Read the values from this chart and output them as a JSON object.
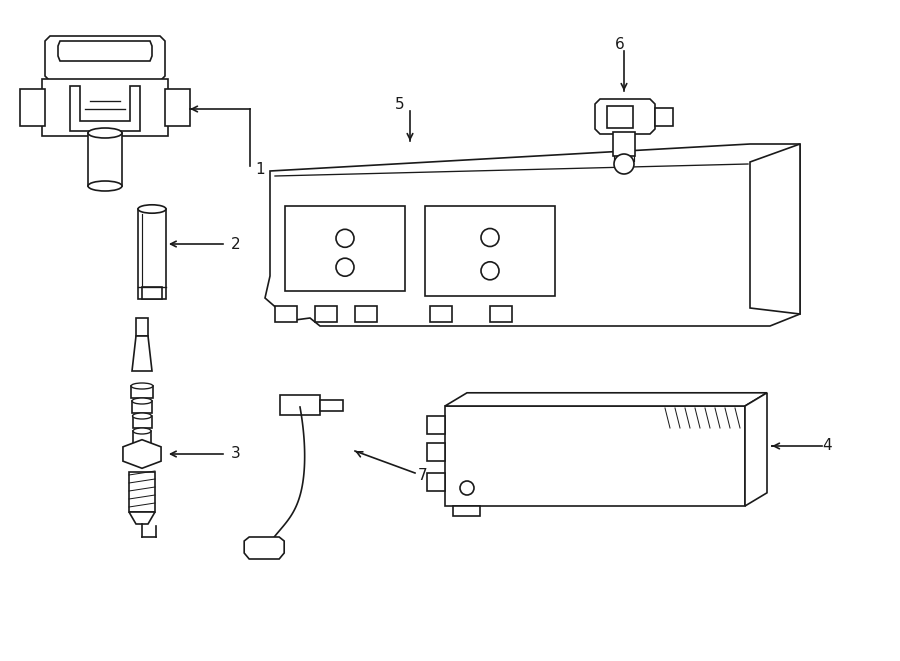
{
  "background_color": "#ffffff",
  "line_color": "#1a1a1a",
  "line_width": 1.2,
  "label_fontsize": 11,
  "figsize": [
    9.0,
    6.61
  ],
  "dpi": 100
}
